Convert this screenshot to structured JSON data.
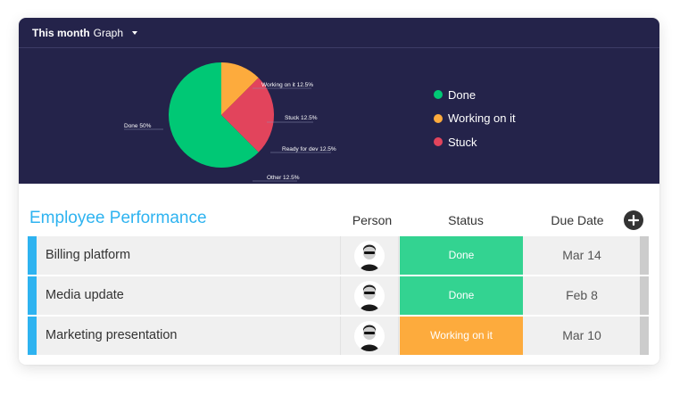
{
  "graph": {
    "period_label": "This month",
    "view_label": "Graph",
    "legend": [
      {
        "label": "Done",
        "color": "#00c875"
      },
      {
        "label": "Working on it",
        "color": "#fdab3d"
      },
      {
        "label": "Stuck",
        "color": "#e2445c"
      }
    ]
  },
  "chart_data": {
    "type": "pie",
    "slices": [
      {
        "label": "Done 50%",
        "value": 50,
        "color": "#00c875"
      },
      {
        "label": "Working on it 12.5%",
        "value": 12.5,
        "color": "#fdab3d"
      },
      {
        "label": "Stuck 12.5%",
        "value": 12.5,
        "color": "#e2445c"
      },
      {
        "label": "Ready for dev 12.5%",
        "value": 12.5,
        "color": "#e2445c"
      },
      {
        "label": "Other 12.5%",
        "value": 12.5,
        "color": "#00c875"
      }
    ]
  },
  "table": {
    "title": "Employee Performance",
    "columns": {
      "person": "Person",
      "status": "Status",
      "due_date": "Due Date"
    },
    "rows": [
      {
        "name": "Billing platform",
        "status": "Done",
        "status_color": "#33d391",
        "due": "Mar 14"
      },
      {
        "name": "Media update",
        "status": "Done",
        "status_color": "#33d391",
        "due": "Feb 8"
      },
      {
        "name": "Marketing presentation",
        "status": "Working on it",
        "status_color": "#fdab3d",
        "due": "Mar 10"
      }
    ]
  },
  "colors": {
    "panel_bg": "#24234a",
    "accent_blue": "#2eb3f0"
  }
}
